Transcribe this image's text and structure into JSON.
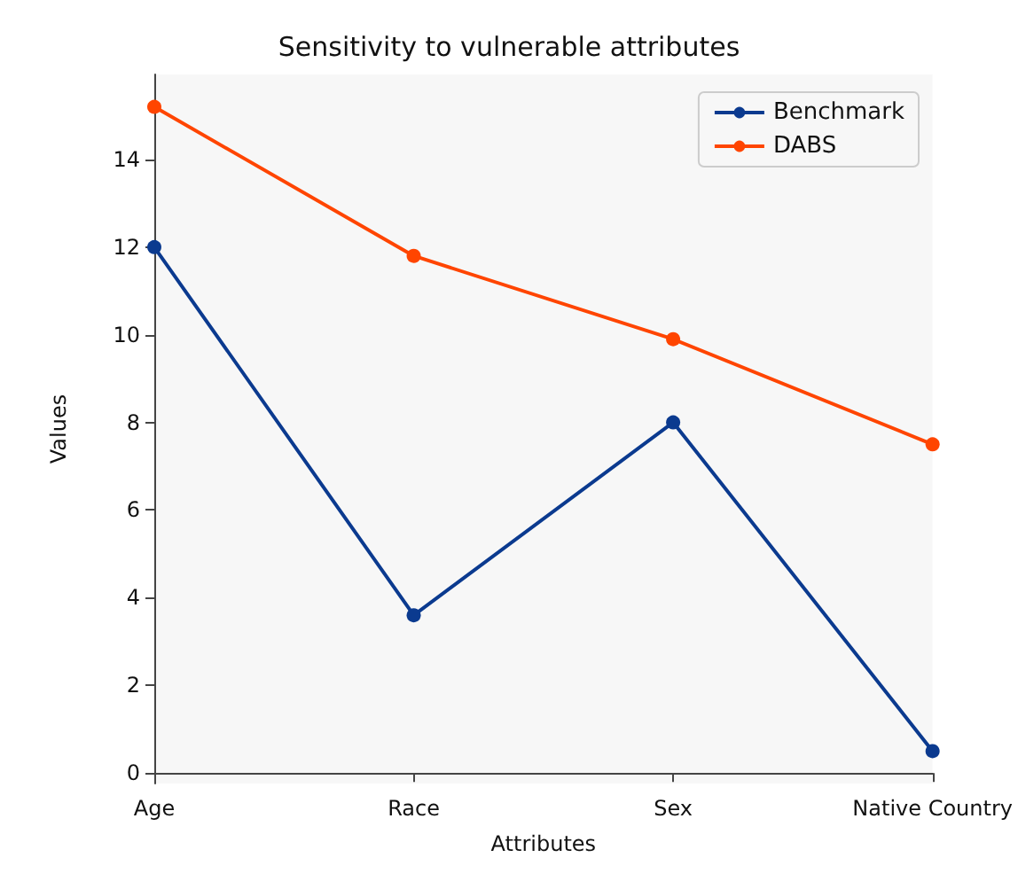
{
  "chart_data": {
    "type": "line",
    "title": "Sensitivity to vulnerable attributes",
    "xlabel": "Attributes",
    "ylabel": "Values",
    "categories": [
      "Age",
      "Race",
      "Sex",
      "Native Country"
    ],
    "series": [
      {
        "name": "Benchmark",
        "color": "#0b3a8f",
        "values": [
          12.0,
          3.6,
          8.0,
          0.5
        ]
      },
      {
        "name": "DABS",
        "color": "#ff4500",
        "values": [
          15.2,
          11.8,
          9.9,
          7.5
        ]
      }
    ],
    "ylim": [
      -0.24,
      15.94
    ],
    "yticks": [
      0,
      2,
      4,
      6,
      8,
      10,
      12,
      14
    ],
    "legend": "top right",
    "marker": "circle",
    "line_style": "solid"
  }
}
